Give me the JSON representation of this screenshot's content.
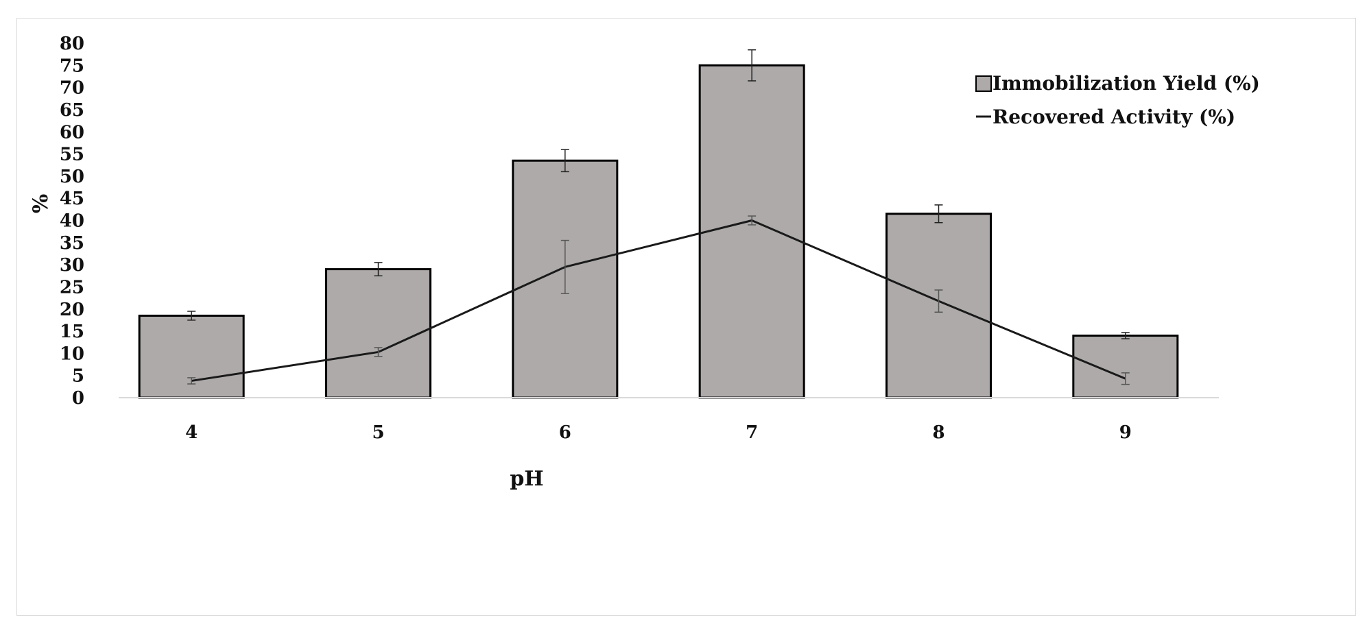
{
  "chart_data": {
    "type": "bar",
    "xlabel": "pH",
    "ylabel": "%",
    "ylim": [
      0,
      80
    ],
    "yticks": [
      0,
      5,
      10,
      15,
      20,
      25,
      30,
      35,
      40,
      45,
      50,
      55,
      60,
      65,
      70,
      75,
      80
    ],
    "categories": [
      "4",
      "5",
      "6",
      "7",
      "8",
      "9"
    ],
    "grid": false,
    "legend_position": "top-right",
    "series": [
      {
        "name": "Immobilization Yield (%)",
        "kind": "bar",
        "values": [
          18.5,
          29,
          53.5,
          75,
          41.5,
          14
        ],
        "errors": [
          1,
          1.5,
          2.5,
          3.5,
          2,
          0.7
        ],
        "color": "#aeaaaa",
        "edge_color": "#000000"
      },
      {
        "name": "Recovered Activity (%)",
        "kind": "line",
        "values": [
          3.8,
          10.3,
          29.5,
          40,
          21.8,
          4.3
        ],
        "errors": [
          0.7,
          1,
          6,
          1,
          2.5,
          1.3
        ],
        "color": "#1a1a1a"
      }
    ]
  }
}
